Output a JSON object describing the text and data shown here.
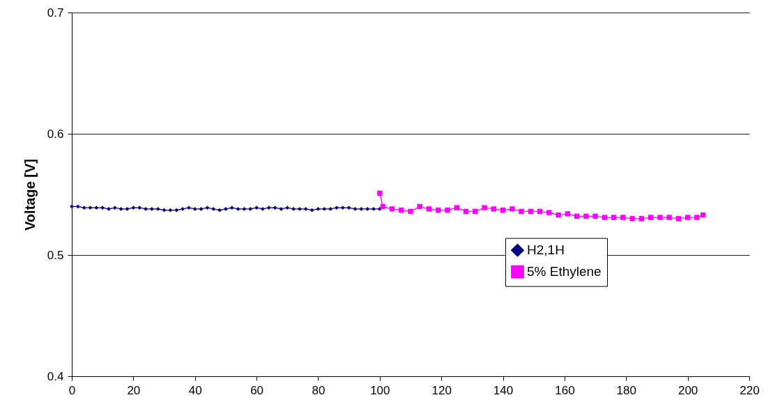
{
  "chart_data": {
    "type": "line",
    "ylabel": "Voltage [V]",
    "xlim": [
      0,
      220
    ],
    "xticks": [
      0,
      20,
      40,
      60,
      80,
      100,
      120,
      140,
      160,
      180,
      200,
      220
    ],
    "ylim": [
      0.4,
      0.7
    ],
    "yticks": [
      0.4,
      0.5,
      0.6,
      0.7
    ],
    "grid": "y",
    "legend": "right",
    "line_style": "solid",
    "series": [
      {
        "name": "H2,1H",
        "color": "#000080",
        "marker": "diamond",
        "x": [
          0,
          2,
          4,
          6,
          8,
          10,
          12,
          14,
          16,
          18,
          20,
          22,
          24,
          26,
          28,
          30,
          32,
          34,
          36,
          38,
          40,
          42,
          44,
          46,
          48,
          50,
          52,
          54,
          56,
          58,
          60,
          62,
          64,
          66,
          68,
          70,
          72,
          74,
          76,
          78,
          80,
          82,
          84,
          86,
          88,
          90,
          92,
          94,
          96,
          98,
          100
        ],
        "values": [
          0.54,
          0.54,
          0.539,
          0.539,
          0.539,
          0.539,
          0.538,
          0.539,
          0.538,
          0.538,
          0.539,
          0.539,
          0.538,
          0.538,
          0.538,
          0.537,
          0.537,
          0.537,
          0.538,
          0.539,
          0.538,
          0.538,
          0.539,
          0.538,
          0.537,
          0.538,
          0.539,
          0.538,
          0.538,
          0.538,
          0.539,
          0.538,
          0.539,
          0.539,
          0.538,
          0.539,
          0.538,
          0.538,
          0.538,
          0.537,
          0.538,
          0.538,
          0.538,
          0.539,
          0.539,
          0.539,
          0.538,
          0.538,
          0.538,
          0.538,
          0.538
        ]
      },
      {
        "name": "5% Ethylene",
        "color": "#ff00ff",
        "marker": "square",
        "x": [
          100,
          101,
          104,
          107,
          110,
          113,
          116,
          119,
          122,
          125,
          128,
          131,
          134,
          137,
          140,
          143,
          146,
          149,
          152,
          155,
          158,
          161,
          164,
          167,
          170,
          173,
          176,
          179,
          182,
          185,
          188,
          191,
          194,
          197,
          200,
          203,
          205
        ],
        "values": [
          0.551,
          0.54,
          0.538,
          0.537,
          0.536,
          0.54,
          0.538,
          0.537,
          0.537,
          0.539,
          0.536,
          0.536,
          0.539,
          0.538,
          0.537,
          0.538,
          0.536,
          0.536,
          0.536,
          0.535,
          0.533,
          0.534,
          0.532,
          0.532,
          0.532,
          0.531,
          0.531,
          0.531,
          0.53,
          0.53,
          0.531,
          0.531,
          0.531,
          0.53,
          0.531,
          0.531,
          0.533
        ]
      }
    ]
  }
}
